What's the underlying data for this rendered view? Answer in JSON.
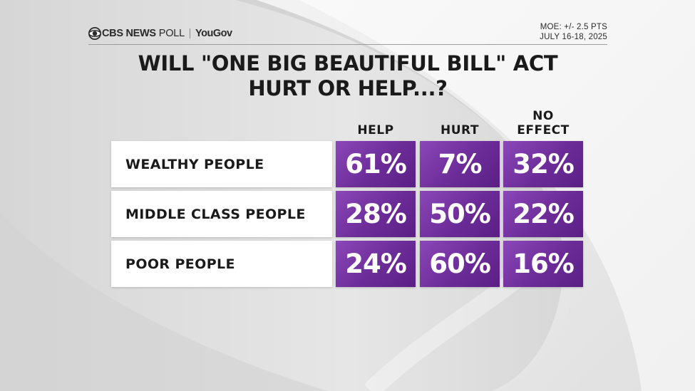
{
  "header": {
    "brand": "CBS NEWS",
    "poll": "POLL",
    "partner": "YouGov",
    "moe": "MOE: +/- 2.5 PTS",
    "dates": "JULY 16-18, 2025"
  },
  "chart_data": {
    "type": "table",
    "title_line1": "WILL \"ONE BIG BEAUTIFUL BILL\" ACT",
    "title_line2": "HURT OR HELP...?",
    "columns": [
      "HELP",
      "HURT",
      "NO EFFECT"
    ],
    "column_lines": [
      [
        "HELP"
      ],
      [
        "HURT"
      ],
      [
        "NO",
        "EFFECT"
      ]
    ],
    "rows": [
      {
        "label": "WEALTHY PEOPLE",
        "values": [
          61,
          7,
          32
        ],
        "display": [
          "61%",
          "7%",
          "32%"
        ]
      },
      {
        "label": "MIDDLE CLASS PEOPLE",
        "values": [
          28,
          50,
          22
        ],
        "display": [
          "28%",
          "50%",
          "22%"
        ]
      },
      {
        "label": "POOR PEOPLE",
        "values": [
          24,
          60,
          16
        ],
        "display": [
          "24%",
          "60%",
          "16%"
        ]
      }
    ],
    "unit": "%"
  },
  "colors": {
    "cell_purple": "#6c2c98",
    "background": "#dcdcdc",
    "label_bg": "#ffffff"
  }
}
